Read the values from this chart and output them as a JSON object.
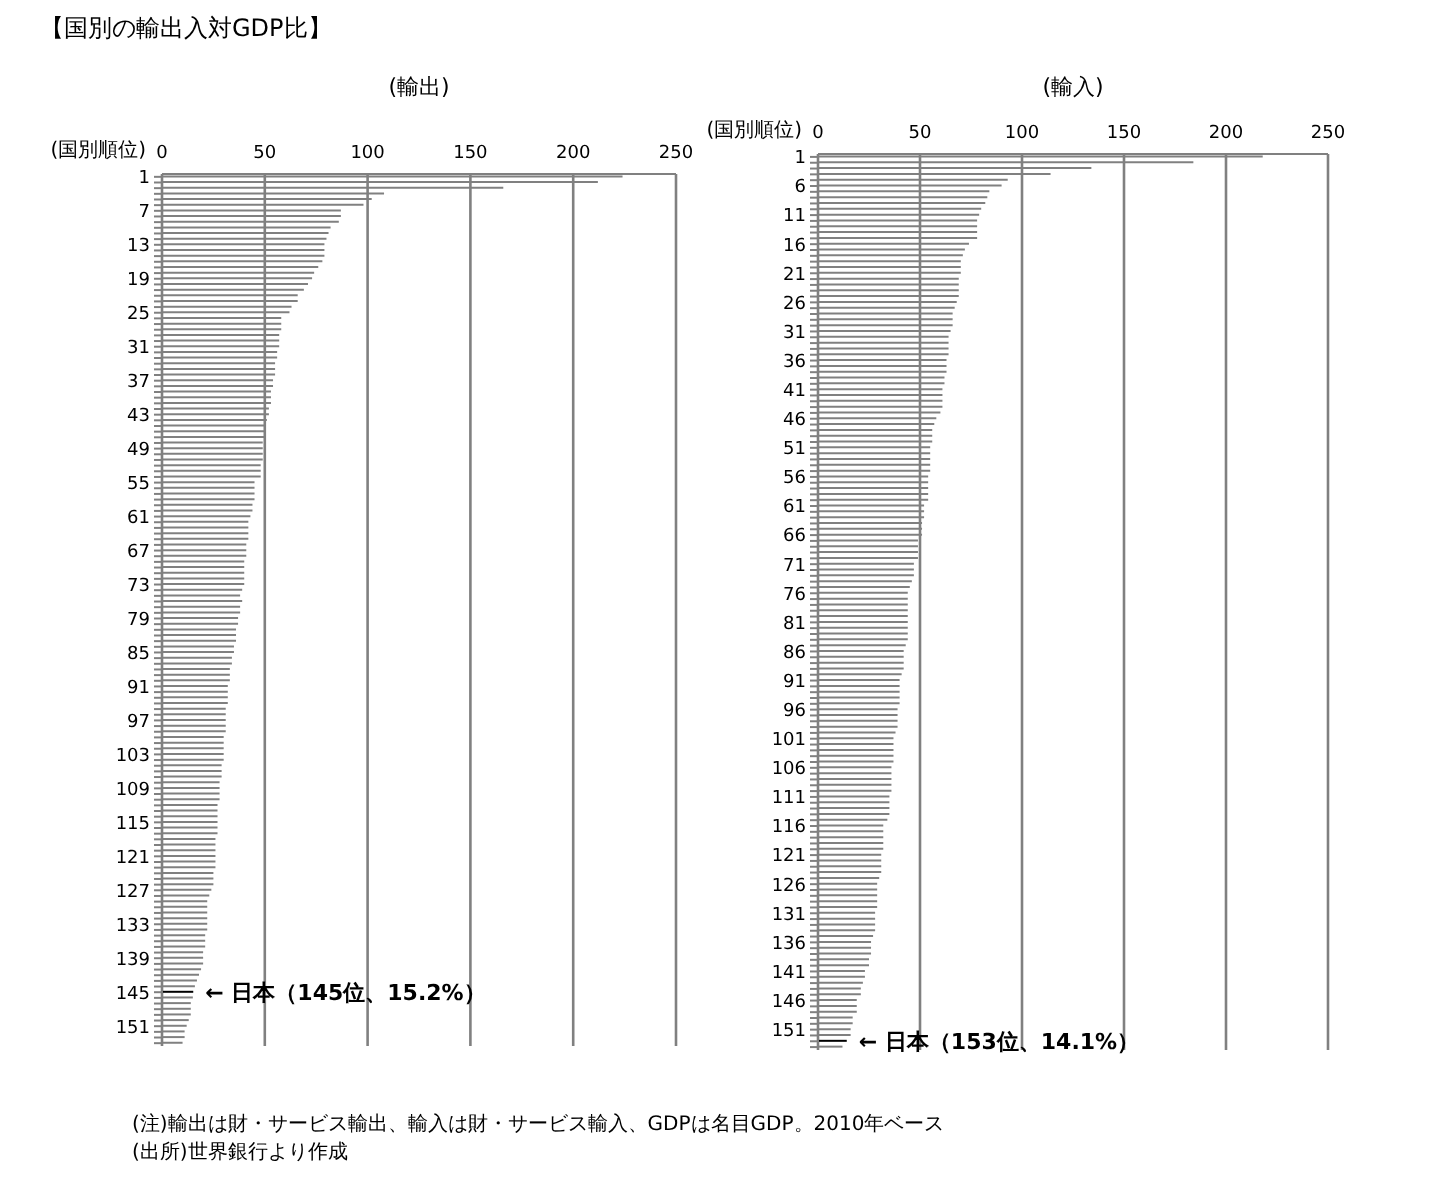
{
  "chart_data": [
    {
      "type": "bar",
      "orientation": "horizontal",
      "title": "【国別の輸出入対GDP比】",
      "xlabel": "(輸出)",
      "ylabel": "(国別順位)",
      "categories": [
        "1",
        null,
        null,
        null,
        null,
        null,
        "7",
        null,
        null,
        null,
        null,
        null,
        "13",
        null,
        null,
        null,
        null,
        null,
        "19",
        null,
        null,
        null,
        null,
        null,
        "25",
        null,
        null,
        null,
        null,
        null,
        "31",
        null,
        null,
        null,
        null,
        null,
        "37",
        null,
        null,
        null,
        null,
        null,
        "43",
        null,
        null,
        null,
        null,
        null,
        "49",
        null,
        null,
        null,
        null,
        null,
        "55",
        null,
        null,
        null,
        null,
        null,
        "61",
        null,
        null,
        null,
        null,
        null,
        "67",
        null,
        null,
        null,
        null,
        null,
        "73",
        null,
        null,
        null,
        null,
        null,
        "79",
        null,
        null,
        null,
        null,
        null,
        "85",
        null,
        null,
        null,
        null,
        null,
        "91",
        null,
        null,
        null,
        null,
        null,
        "97",
        null,
        null,
        null,
        null,
        null,
        "103",
        null,
        null,
        null,
        null,
        null,
        "109",
        null,
        null,
        null,
        null,
        null,
        "115",
        null,
        null,
        null,
        null,
        null,
        "121",
        null,
        null,
        null,
        null,
        null,
        "127",
        null,
        null,
        null,
        null,
        null,
        "133",
        null,
        null,
        null,
        null,
        null,
        "139",
        null,
        null,
        null,
        null,
        null,
        "145",
        null,
        null,
        null,
        null,
        null,
        "151",
        null,
        null,
        null
      ],
      "values": [
        224,
        212,
        166,
        108,
        102,
        98,
        87,
        87,
        86,
        82,
        81,
        80,
        79,
        79,
        79,
        78,
        76,
        74,
        73,
        71,
        69,
        66,
        66,
        63,
        62,
        58,
        58,
        58,
        57,
        57,
        57,
        56,
        56,
        55,
        55,
        55,
        54,
        54,
        53,
        53,
        53,
        52,
        52,
        51,
        50,
        50,
        50,
        49,
        49,
        49,
        49,
        48,
        48,
        48,
        45,
        45,
        45,
        45,
        44,
        44,
        43,
        42,
        42,
        42,
        42,
        41,
        41,
        41,
        40,
        40,
        40,
        40,
        40,
        39,
        38,
        39,
        38,
        38,
        37,
        37,
        36,
        36,
        36,
        35,
        35,
        34,
        34,
        33,
        33,
        33,
        32,
        32,
        32,
        32,
        31,
        31,
        31,
        31,
        31,
        30,
        30,
        30,
        30,
        30,
        29,
        29,
        29,
        28,
        28,
        28,
        28,
        27,
        27,
        27,
        27,
        27,
        27,
        26,
        26,
        26,
        26,
        26,
        26,
        25,
        25,
        25,
        24,
        23,
        22,
        22,
        22,
        22,
        22,
        22,
        21,
        21,
        21,
        20,
        20,
        20,
        19,
        18,
        17,
        16,
        15.2,
        15,
        14,
        14,
        14,
        13,
        12,
        11,
        11,
        10
      ],
      "colors": [
        "#808080",
        "#808080",
        "#808080",
        "#808080",
        "#808080",
        "#808080",
        "#808080",
        "#808080",
        "#808080",
        "#808080",
        "#808080",
        "#808080",
        "#808080",
        "#808080",
        "#808080",
        "#808080",
        "#808080",
        "#808080",
        "#808080",
        "#808080",
        "#808080",
        "#808080",
        "#808080",
        "#808080",
        "#808080",
        "#808080",
        "#808080",
        "#808080",
        "#808080",
        "#808080",
        "#808080",
        "#808080",
        "#808080",
        "#808080",
        "#808080",
        "#808080",
        "#808080",
        "#808080",
        "#808080",
        "#808080",
        "#808080",
        "#808080",
        "#808080",
        "#808080",
        "#808080",
        "#808080",
        "#808080",
        "#808080",
        "#808080",
        "#808080",
        "#808080",
        "#808080",
        "#808080",
        "#808080",
        "#808080",
        "#808080",
        "#808080",
        "#808080",
        "#808080",
        "#808080",
        "#808080",
        "#808080",
        "#808080",
        "#808080",
        "#808080",
        "#808080",
        "#808080",
        "#808080",
        "#808080",
        "#808080",
        "#808080",
        "#808080",
        "#808080",
        "#808080",
        "#808080",
        "#808080",
        "#808080",
        "#808080",
        "#808080",
        "#808080",
        "#808080",
        "#808080",
        "#808080",
        "#808080",
        "#808080",
        "#808080",
        "#808080",
        "#808080",
        "#808080",
        "#808080",
        "#808080",
        "#808080",
        "#808080",
        "#808080",
        "#808080",
        "#808080",
        "#808080",
        "#808080",
        "#808080",
        "#808080",
        "#808080",
        "#808080",
        "#808080",
        "#808080",
        "#808080",
        "#808080",
        "#808080",
        "#808080",
        "#808080",
        "#808080",
        "#808080",
        "#808080",
        "#808080",
        "#808080",
        "#808080",
        "#808080",
        "#808080",
        "#808080",
        "#808080",
        "#808080",
        "#808080",
        "#808080",
        "#808080",
        "#808080",
        "#808080",
        "#808080",
        "#808080",
        "#808080",
        "#808080",
        "#808080",
        "#808080",
        "#808080",
        "#808080",
        "#808080",
        "#808080",
        "#808080",
        "#808080",
        "#808080",
        "#808080",
        "#808080",
        "#808080",
        "#808080",
        "#808080",
        "#808080",
        "#000000",
        "#808080",
        "#808080",
        "#808080",
        "#808080",
        "#808080",
        "#808080",
        "#808080",
        "#808080",
        "#808080"
      ],
      "xlim": [
        0,
        250
      ],
      "xticks": [
        0,
        50,
        100,
        150,
        200,
        250
      ],
      "grid": "x",
      "annotations": [
        {
          "text": "←  日本（145位、15.2%）",
          "x": 15.2,
          "y": "145"
        },
        "(注)輸出は財・サービス輸出、輸入は財・サービス輸入、GDPは名目GDP。2010年ベース",
        "(出所)世界銀行より作成"
      ]
    },
    {
      "type": "bar",
      "orientation": "horizontal",
      "xlabel": "(輸入)",
      "ylabel": "(国別順位)",
      "categories": [
        "1",
        null,
        null,
        null,
        null,
        "6",
        null,
        null,
        null,
        null,
        "11",
        null,
        null,
        null,
        null,
        "16",
        null,
        null,
        null,
        null,
        "21",
        null,
        null,
        null,
        null,
        "26",
        null,
        null,
        null,
        null,
        "31",
        null,
        null,
        null,
        null,
        "36",
        null,
        null,
        null,
        null,
        "41",
        null,
        null,
        null,
        null,
        "46",
        null,
        null,
        null,
        null,
        "51",
        null,
        null,
        null,
        null,
        "56",
        null,
        null,
        null,
        null,
        "61",
        null,
        null,
        null,
        null,
        "66",
        null,
        null,
        null,
        null,
        "71",
        null,
        null,
        null,
        null,
        "76",
        null,
        null,
        null,
        null,
        "81",
        null,
        null,
        null,
        null,
        "86",
        null,
        null,
        null,
        null,
        "91",
        null,
        null,
        null,
        null,
        "96",
        null,
        null,
        null,
        null,
        "101",
        null,
        null,
        null,
        null,
        "106",
        null,
        null,
        null,
        null,
        "111",
        null,
        null,
        null,
        null,
        "116",
        null,
        null,
        null,
        null,
        "121",
        null,
        null,
        null,
        null,
        "126",
        null,
        null,
        null,
        null,
        "131",
        null,
        null,
        null,
        null,
        "136",
        null,
        null,
        null,
        null,
        "141",
        null,
        null,
        null,
        null,
        "146",
        null,
        null,
        null,
        null,
        "151",
        null,
        null,
        null
      ],
      "values": [
        218,
        184,
        134,
        114,
        93,
        90,
        84,
        83,
        82,
        80,
        79,
        78,
        78,
        78,
        78,
        74,
        72,
        71,
        70,
        70,
        70,
        69,
        69,
        69,
        69,
        68,
        67,
        66,
        66,
        66,
        65,
        64,
        64,
        64,
        64,
        63,
        63,
        63,
        62,
        62,
        61,
        61,
        61,
        61,
        60,
        58,
        57,
        56,
        56,
        56,
        55,
        55,
        55,
        55,
        55,
        54,
        54,
        54,
        54,
        54,
        52,
        52,
        52,
        51,
        51,
        51,
        49,
        49,
        49,
        49,
        47,
        47,
        47,
        46,
        45,
        44,
        44,
        44,
        44,
        44,
        44,
        44,
        44,
        44,
        43,
        42,
        42,
        42,
        42,
        41,
        40,
        40,
        40,
        40,
        40,
        39,
        39,
        39,
        39,
        38,
        37,
        37,
        37,
        37,
        37,
        36,
        36,
        36,
        36,
        36,
        35,
        35,
        35,
        35,
        34,
        32,
        32,
        32,
        32,
        32,
        31,
        31,
        31,
        31,
        30,
        29,
        29,
        29,
        29,
        29,
        28,
        28,
        28,
        28,
        27,
        26,
        26,
        26,
        25,
        25,
        23,
        23,
        22,
        21,
        21,
        19,
        19,
        19,
        17,
        17,
        16,
        16,
        14.1,
        12
      ],
      "colors": [
        "#808080",
        "#808080",
        "#808080",
        "#808080",
        "#808080",
        "#808080",
        "#808080",
        "#808080",
        "#808080",
        "#808080",
        "#808080",
        "#808080",
        "#808080",
        "#808080",
        "#808080",
        "#808080",
        "#808080",
        "#808080",
        "#808080",
        "#808080",
        "#808080",
        "#808080",
        "#808080",
        "#808080",
        "#808080",
        "#808080",
        "#808080",
        "#808080",
        "#808080",
        "#808080",
        "#808080",
        "#808080",
        "#808080",
        "#808080",
        "#808080",
        "#808080",
        "#808080",
        "#808080",
        "#808080",
        "#808080",
        "#808080",
        "#808080",
        "#808080",
        "#808080",
        "#808080",
        "#808080",
        "#808080",
        "#808080",
        "#808080",
        "#808080",
        "#808080",
        "#808080",
        "#808080",
        "#808080",
        "#808080",
        "#808080",
        "#808080",
        "#808080",
        "#808080",
        "#808080",
        "#808080",
        "#808080",
        "#808080",
        "#808080",
        "#808080",
        "#808080",
        "#808080",
        "#808080",
        "#808080",
        "#808080",
        "#808080",
        "#808080",
        "#808080",
        "#808080",
        "#808080",
        "#808080",
        "#808080",
        "#808080",
        "#808080",
        "#808080",
        "#808080",
        "#808080",
        "#808080",
        "#808080",
        "#808080",
        "#808080",
        "#808080",
        "#808080",
        "#808080",
        "#808080",
        "#808080",
        "#808080",
        "#808080",
        "#808080",
        "#808080",
        "#808080",
        "#808080",
        "#808080",
        "#808080",
        "#808080",
        "#808080",
        "#808080",
        "#808080",
        "#808080",
        "#808080",
        "#808080",
        "#808080",
        "#808080",
        "#808080",
        "#808080",
        "#808080",
        "#808080",
        "#808080",
        "#808080",
        "#808080",
        "#808080",
        "#808080",
        "#808080",
        "#808080",
        "#808080",
        "#808080",
        "#808080",
        "#808080",
        "#808080",
        "#808080",
        "#808080",
        "#808080",
        "#808080",
        "#808080",
        "#808080",
        "#808080",
        "#808080",
        "#808080",
        "#808080",
        "#808080",
        "#808080",
        "#808080",
        "#808080",
        "#808080",
        "#808080",
        "#808080",
        "#808080",
        "#808080",
        "#808080",
        "#808080",
        "#808080",
        "#808080",
        "#808080",
        "#808080",
        "#808080",
        "#808080",
        "#808080",
        "#000000",
        "#808080"
      ],
      "xlim": [
        0,
        250
      ],
      "xticks": [
        0,
        50,
        100,
        150,
        200,
        250
      ],
      "grid": "x",
      "annotations": [
        {
          "text": "←  日本（153位、14.1%）",
          "x": 14.1
        }
      ]
    }
  ]
}
